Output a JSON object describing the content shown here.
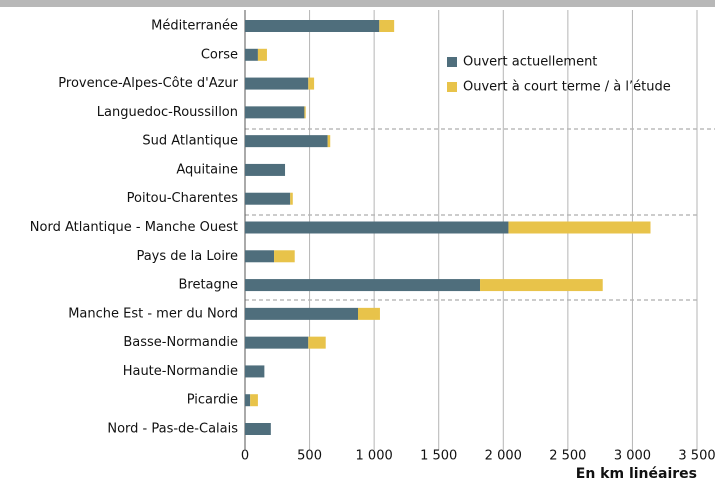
{
  "chart_data": {
    "type": "stacked_barh",
    "xlabel": "En km linéaires",
    "categories": [
      "Méditerranée",
      "Corse",
      "Provence-Alpes-Côte d'Azur",
      "Languedoc-Roussillon",
      "Sud Atlantique",
      "Aquitaine",
      "Poitou-Charentes",
      "Nord Atlantique - Manche Ouest",
      "Pays de la Loire",
      "Bretagne",
      "Manche Est - mer du Nord",
      "Basse-Normandie",
      "Haute-Normandie",
      "Picardie",
      "Nord - Pas-de-Calais"
    ],
    "series": [
      {
        "name": "Ouvert actuellement",
        "color": "#4f6e7c",
        "values": [
          1040,
          100,
          490,
          460,
          640,
          310,
          350,
          2040,
          225,
          1820,
          875,
          490,
          150,
          40,
          200
        ]
      },
      {
        "name": "Ouvert à court terme / à l’étude",
        "color": "#e8c34a",
        "values": [
          115,
          70,
          45,
          10,
          20,
          0,
          20,
          1100,
          160,
          950,
          170,
          135,
          0,
          60,
          0
        ]
      }
    ],
    "xlim": [
      0,
      3500
    ],
    "xticks": [
      0,
      500,
      {
        "value": 1000,
        "label": "1 000"
      },
      {
        "value": 1500,
        "label": "1 500"
      },
      {
        "value": 2000,
        "label": "2 000"
      },
      {
        "value": 2500,
        "label": "2 500"
      },
      {
        "value": 3000,
        "label": "3 000"
      },
      {
        "value": 3500,
        "label": "3 500"
      }
    ],
    "grid": true
  }
}
